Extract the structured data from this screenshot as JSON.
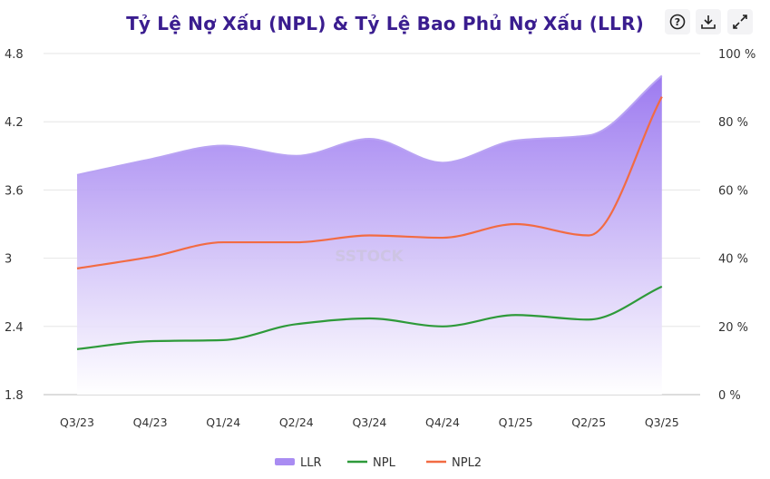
{
  "toolbar": {
    "help_icon": "question-circle-icon",
    "download_icon": "download-icon",
    "expand_icon": "expand-icon"
  },
  "watermark": "SSTOCK",
  "chart_data": {
    "type": "line",
    "title": "Tỷ Lệ Nợ Xấu (NPL) & Tỷ Lệ Bao Phủ Nợ Xấu (LLR)",
    "categories": [
      "Q3/23",
      "Q4/23",
      "Q1/24",
      "Q2/24",
      "Q3/24",
      "Q4/24",
      "Q1/25",
      "Q2/25",
      "Q3/25"
    ],
    "left_axis": {
      "range": [
        1.8,
        4.8
      ],
      "ticks": [
        "1.8",
        "2.4",
        "3",
        "3.6",
        "4.2",
        "4.8"
      ]
    },
    "right_axis": {
      "range": [
        0,
        100
      ],
      "ticks": [
        "0 %",
        "20 %",
        "40 %",
        "60 %",
        "80 %",
        "100 %"
      ]
    },
    "grid": true,
    "legend_position": "bottom",
    "series": [
      {
        "name": "LLR",
        "type": "area",
        "axis": "right",
        "color": "#9b7cf0",
        "values": [
          64.4,
          69,
          73,
          70,
          75,
          68,
          74.5,
          76,
          93.5
        ]
      },
      {
        "name": "NPL",
        "type": "line",
        "axis": "left",
        "color": "#2e9a3a",
        "values": [
          2.2,
          2.27,
          2.28,
          2.42,
          2.47,
          2.4,
          2.5,
          2.46,
          2.75
        ]
      },
      {
        "name": "NPL2",
        "type": "line",
        "axis": "left",
        "color": "#f26b43",
        "values": [
          2.91,
          3.01,
          3.14,
          3.14,
          3.2,
          3.18,
          3.3,
          3.2,
          4.42
        ]
      }
    ]
  }
}
